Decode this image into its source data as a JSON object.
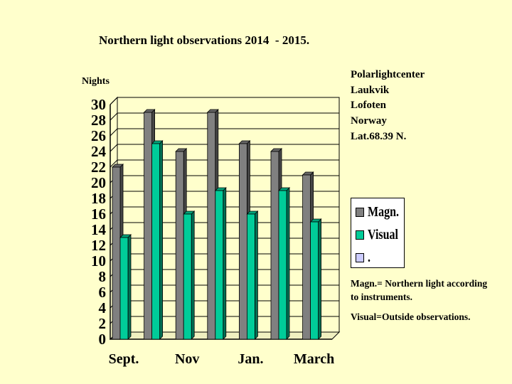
{
  "title": "Northern light observations 2014  - 2015.",
  "info_lines": [
    "Polarlightcenter",
    "Laukvik",
    "Lofoten",
    "Norway",
    "Lat.68.39 N."
  ],
  "notes": [
    "Magn.= Northern light according to instruments.",
    "Visual=Outside observations."
  ],
  "colors": {
    "magn": "#808080",
    "visual": "#00CC99",
    "third": "#CCCCFF",
    "background": "#FFFFCC"
  },
  "chart_data": {
    "type": "bar",
    "title": "Northern light observations 2014  - 2015.",
    "ylabel": "Nights",
    "xlabel": "",
    "ylim": [
      0,
      30
    ],
    "yticks": [
      0,
      2,
      4,
      6,
      8,
      10,
      12,
      14,
      16,
      18,
      20,
      22,
      24,
      26,
      28,
      30
    ],
    "categories": [
      "Sept.",
      "",
      "Nov",
      "",
      "Jan.",
      "",
      "March"
    ],
    "series": [
      {
        "name": "Magn.",
        "values": [
          22,
          29,
          24,
          29,
          25,
          24,
          21
        ]
      },
      {
        "name": "Visual",
        "values": [
          13,
          25,
          16,
          19,
          16,
          19,
          15
        ]
      },
      {
        "name": ".",
        "values": [
          0,
          0,
          0,
          0,
          0,
          0,
          0
        ]
      }
    ],
    "grid": true,
    "legend": "right"
  }
}
